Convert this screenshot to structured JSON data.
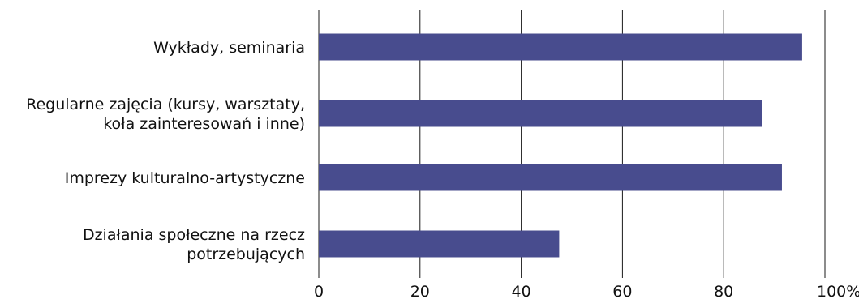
{
  "chart_data": {
    "type": "bar",
    "orientation": "horizontal",
    "categories": [
      [
        "Wykłady, seminaria"
      ],
      [
        "Regularne zajęcia (kursy, warsztaty,",
        "koła zainteresowań i inne)"
      ],
      [
        "Imprezy kulturalno-artystyczne"
      ],
      [
        "Działania społeczne na rzecz",
        "potrzebujących"
      ]
    ],
    "values": [
      95.5,
      87.5,
      91.5,
      47.5
    ],
    "xlim": [
      0,
      100
    ],
    "xticks": [
      "0",
      "20",
      "40",
      "60",
      "80",
      "100%"
    ],
    "grid": true,
    "bar_color": "#484c8e",
    "grid_color": "#1a1a1a"
  }
}
